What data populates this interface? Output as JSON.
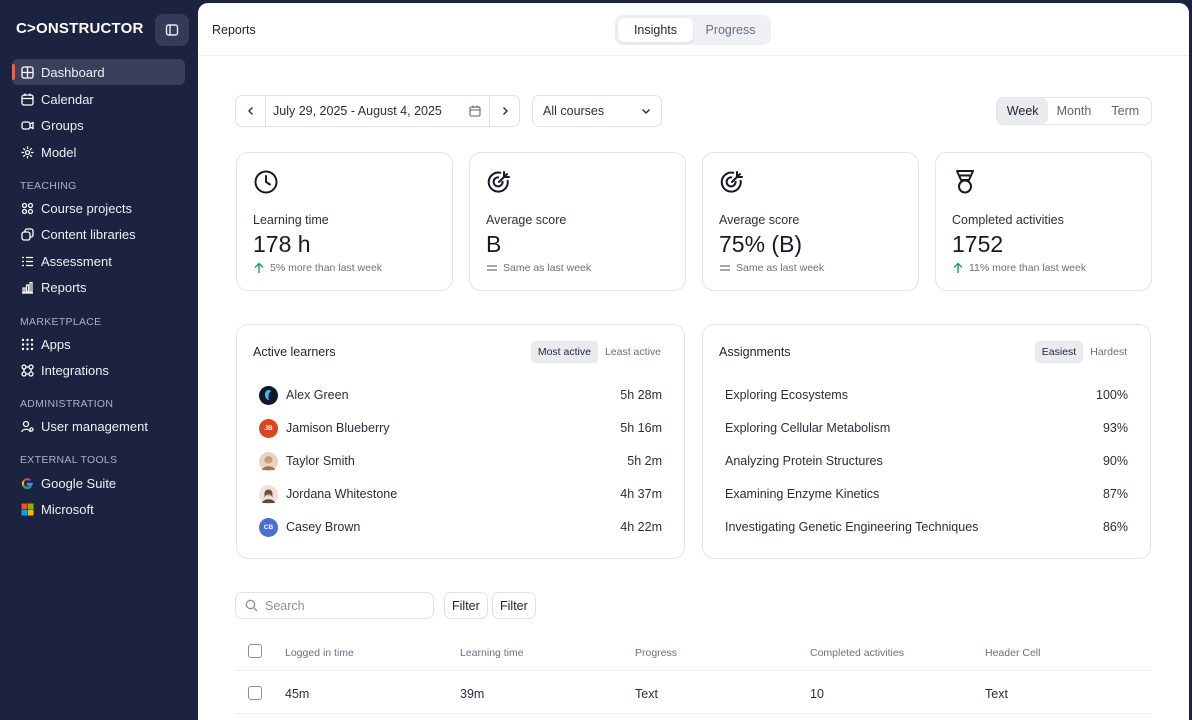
{
  "brand": {
    "logo": "C>ONSTRUCTOR",
    "accent": "#e5684e",
    "sidebar_bg": "#1c2340"
  },
  "sidebar": {
    "items": [
      {
        "label": "Dashboard",
        "icon": "dashboard-icon",
        "active": true
      },
      {
        "label": "Calendar",
        "icon": "calendar-icon"
      },
      {
        "label": "Groups",
        "icon": "groups-icon"
      },
      {
        "label": "Model",
        "icon": "model-icon"
      }
    ],
    "sections": [
      {
        "title": "TEACHING",
        "items": [
          {
            "label": "Course projects",
            "icon": "course-projects-icon"
          },
          {
            "label": "Content libraries",
            "icon": "content-libraries-icon"
          },
          {
            "label": "Assessment",
            "icon": "assessment-icon"
          },
          {
            "label": "Reports",
            "icon": "reports-icon"
          }
        ]
      },
      {
        "title": "MARKETPLACE",
        "items": [
          {
            "label": "Apps",
            "icon": "apps-icon"
          },
          {
            "label": "Integrations",
            "icon": "integrations-icon"
          }
        ]
      },
      {
        "title": "ADMINISTRATION",
        "items": [
          {
            "label": "User management",
            "icon": "user-management-icon"
          }
        ]
      },
      {
        "title": "EXTERNAL TOOLS",
        "items": [
          {
            "label": "Google Suite",
            "icon": "google-icon"
          },
          {
            "label": "Microsoft",
            "icon": "microsoft-icon"
          }
        ]
      }
    ]
  },
  "header": {
    "breadcrumb": "Reports",
    "tabs": [
      {
        "label": "Insights",
        "active": true
      },
      {
        "label": "Progress"
      }
    ]
  },
  "filters": {
    "date_range": "July 29, 2025 - August 4, 2025",
    "course": "All courses",
    "periods": [
      {
        "label": "Week",
        "active": true
      },
      {
        "label": "Month"
      },
      {
        "label": "Term"
      }
    ]
  },
  "stats": [
    {
      "icon": "clock-icon",
      "label": "Learning time",
      "value": "178 h",
      "trend_icon": "arrow-up-icon",
      "trend": "5% more than last week"
    },
    {
      "icon": "target-icon",
      "label": "Average score",
      "value": "B",
      "trend_icon": "equals-icon",
      "trend": "Same as last week"
    },
    {
      "icon": "target-icon",
      "label": "Average score",
      "value": "75% (B)",
      "trend_icon": "equals-icon",
      "trend": "Same as last week"
    },
    {
      "icon": "medal-icon",
      "label": "Completed activities",
      "value": "1752",
      "trend_icon": "arrow-up-icon",
      "trend": "11% more than last week"
    }
  ],
  "active_learners": {
    "title": "Active learners",
    "toggle": [
      {
        "label": "Most active",
        "active": true
      },
      {
        "label": "Least active"
      }
    ],
    "rows": [
      {
        "name": "Alex Green",
        "time": "5h 28m",
        "avatar": "",
        "avatar_color": "#111827"
      },
      {
        "name": "Jamison Blueberry",
        "time": "5h 16m",
        "avatar": "JB",
        "avatar_color": "#d9481c"
      },
      {
        "name": "Taylor Smith",
        "time": "5h 2m",
        "avatar": "",
        "avatar_color": "#caa07f"
      },
      {
        "name": "Jordana Whitestone",
        "time": "4h 37m",
        "avatar": "",
        "avatar_color": "#d8b9a6"
      },
      {
        "name": "Casey Brown",
        "time": "4h 22m",
        "avatar": "CB",
        "avatar_color": "#4a6fd1"
      }
    ]
  },
  "assignments": {
    "title": "Assignments",
    "toggle": [
      {
        "label": "Easiest",
        "active": true
      },
      {
        "label": "Hardest"
      }
    ],
    "rows": [
      {
        "name": "Exploring Ecosystems",
        "value": "100%"
      },
      {
        "name": "Exploring Cellular Metabolism",
        "value": "93%"
      },
      {
        "name": "Analyzing Protein Structures",
        "value": "90%"
      },
      {
        "name": "Examining Enzyme Kinetics",
        "value": "87%"
      },
      {
        "name": "Investigating Genetic Engineering Techniques",
        "value": "86%"
      }
    ]
  },
  "table": {
    "search_placeholder": "Search",
    "filter_labels": [
      "Filter",
      "Filter"
    ],
    "columns": [
      "Logged in time",
      "Learning time",
      "Progress",
      "Completed activities",
      "Header Cell"
    ],
    "rows": [
      [
        "45m",
        "39m",
        "Text",
        "10",
        "Text"
      ]
    ]
  }
}
